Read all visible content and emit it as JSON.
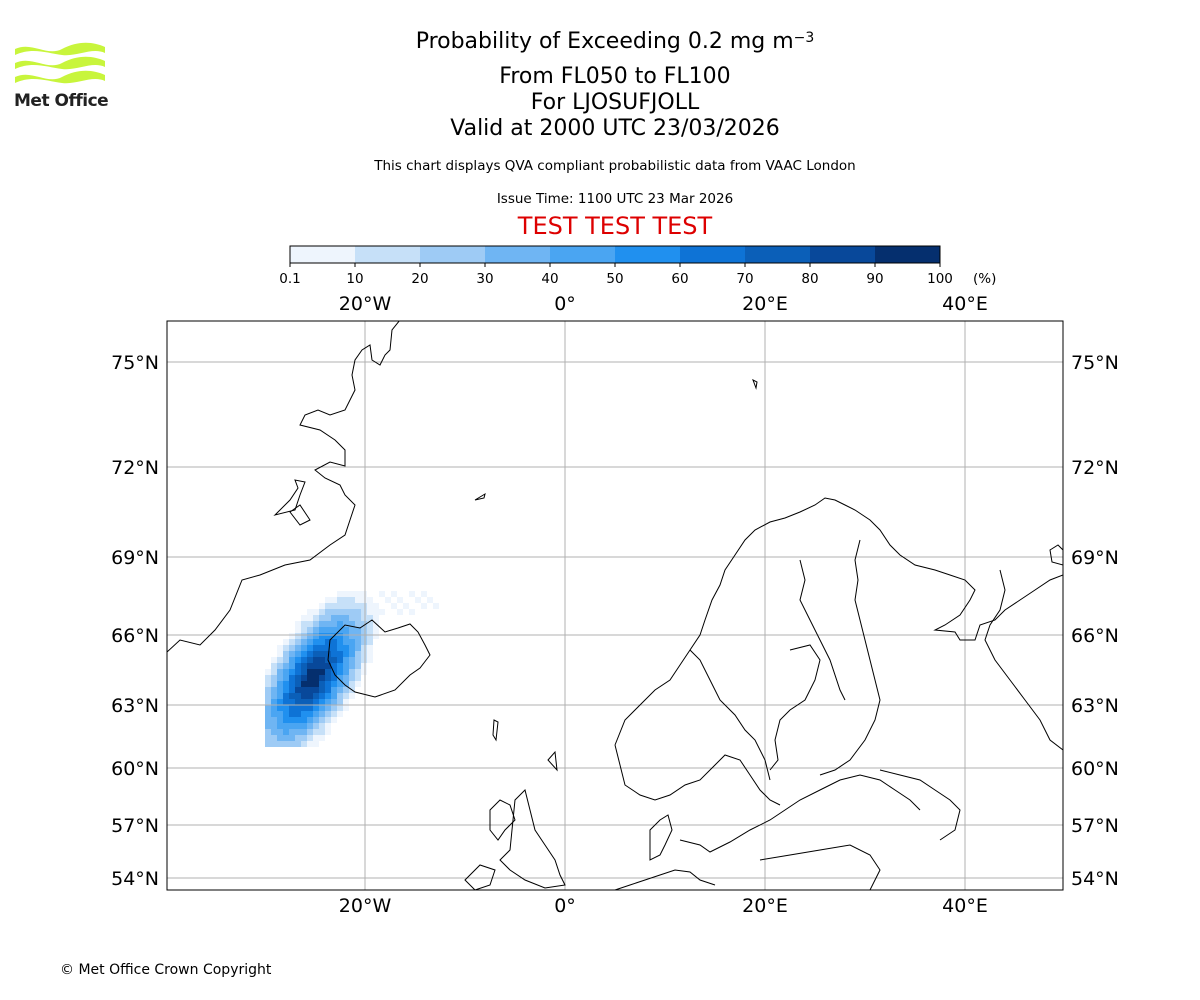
{
  "header": {
    "title_prefix": "Probability of Exceeding 0.2 mg m",
    "title_exponent": "−3",
    "levels": "From FL050 to FL100",
    "location": "For LJOSUFJOLL",
    "valid": "Valid at 2000 UTC 23/03/2026",
    "description": "This chart displays QVA compliant probabilistic data from VAAC London",
    "issue_time": "Issue Time: 1100 UTC 23 Mar 2026",
    "test_banner": "TEST TEST TEST"
  },
  "logo": {
    "text": "Met Office",
    "color": "#c8f53c"
  },
  "colorbar": {
    "ticks": [
      "0.1",
      "10",
      "20",
      "30",
      "40",
      "50",
      "60",
      "70",
      "80",
      "90",
      "100"
    ],
    "unit": "(%)",
    "colors": [
      "#eef5fd",
      "#c6e0f8",
      "#9ecbf5",
      "#6fb5f3",
      "#4aa5f2",
      "#2090ef",
      "#0e73d6",
      "#0b5fb8",
      "#08489a",
      "#052f6e"
    ]
  },
  "map": {
    "lon_labels": [
      "20°W",
      "0°",
      "20°E",
      "40°E"
    ],
    "lat_labels": [
      "75°N",
      "72°N",
      "69°N",
      "66°N",
      "63°N",
      "60°N",
      "57°N",
      "54°N"
    ],
    "lon_values": [
      -20,
      0,
      20,
      40
    ],
    "lat_values": [
      75,
      72,
      69,
      66,
      63,
      60,
      57,
      54
    ],
    "gridline_color": "#b0b0b0",
    "plume_note": "probability plume west of Iceland"
  },
  "footer": {
    "copyright": "© Met Office Crown Copyright"
  }
}
